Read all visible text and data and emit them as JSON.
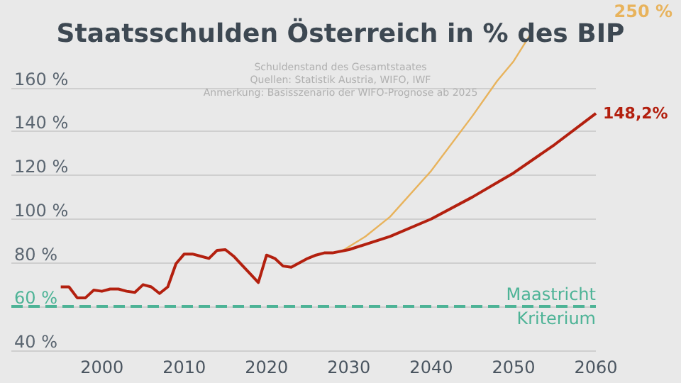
{
  "chart_data": {
    "type": "line",
    "title": "Staatsschulden Österreich in % des BIP",
    "subtitle": "Schuldenstand des Gesamtstaates",
    "annotations": [
      "Quellen: Statistik Austria, WIFO, IWF",
      "Anmerkung: Basisszenario der WIFO-Prognose ab 2025",
      "250 %"
    ],
    "series": [
      {
        "color": "#e8b35c",
        "x": [
          2029,
          2032,
          2035,
          2040,
          2045,
          2048,
          2050,
          2052
        ],
        "values": [
          85,
          92,
          101,
          122,
          147,
          163,
          172,
          184
        ]
      },
      {
        "color": "#b3200f",
        "x": [
          1995,
          1996,
          1997,
          1998,
          1999,
          2000,
          2001,
          2002,
          2003,
          2004,
          2005,
          2006,
          2007,
          2008,
          2009,
          2010,
          2011,
          2012,
          2013,
          2014,
          2015,
          2016,
          2017,
          2018,
          2019,
          2020,
          2021,
          2022,
          2023,
          2024,
          2025,
          2026,
          2027,
          2028,
          2030,
          2035,
          2040,
          2045,
          2050,
          2055,
          2060
        ],
        "values": [
          69,
          69,
          64,
          64,
          67.5,
          67,
          68,
          68,
          67,
          66.5,
          70,
          69,
          66,
          69,
          79.6,
          84,
          84,
          83,
          82,
          85.7,
          86,
          83,
          79,
          75,
          71,
          83.5,
          82,
          78.5,
          78,
          80,
          82,
          83.5,
          84.5,
          84.5,
          86,
          92,
          100,
          110,
          121,
          134,
          148.2
        ],
        "value_labels": [
          null,
          null,
          null,
          null,
          null,
          null,
          null,
          null,
          null,
          null,
          null,
          null,
          null,
          null,
          null,
          null,
          null,
          null,
          null,
          null,
          null,
          null,
          null,
          null,
          null,
          null,
          null,
          null,
          null,
          null,
          null,
          null,
          null,
          null,
          null,
          null,
          null,
          null,
          null,
          null,
          "148,2%"
        ]
      }
    ],
    "xlim": [
      1989,
      2060
    ],
    "xticks": [
      2000,
      2010,
      2020,
      2030,
      2040,
      2050,
      2060
    ],
    "ylim": [
      40,
      200
    ],
    "yticks": [
      {
        "value": 40,
        "label": "40 %"
      },
      {
        "value": 60,
        "label": "60 %"
      },
      {
        "value": 80,
        "label": "80 %"
      },
      {
        "value": 100,
        "label": "100 %"
      },
      {
        "value": 120,
        "label": "120 %"
      },
      {
        "value": 140,
        "label": "140 %"
      },
      {
        "value": 160,
        "label": "160 %"
      }
    ],
    "ref_lines": [
      {
        "axis": "y",
        "value": 60,
        "label": "Maastricht Kriterium",
        "color": "#4db396",
        "line_style": "dashed"
      }
    ],
    "grid": "y",
    "marker": "none",
    "line_style": "solid"
  }
}
